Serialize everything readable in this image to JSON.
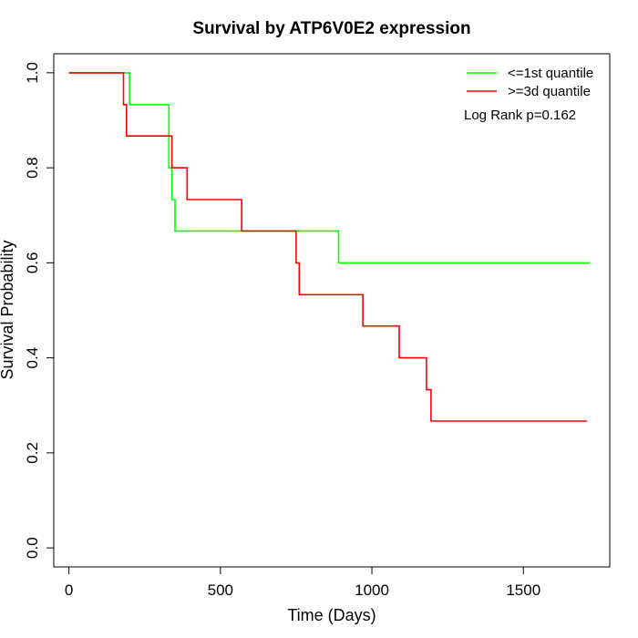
{
  "chart_data": {
    "type": "line",
    "title": "Survival by ATP6V0E2 expression",
    "xlabel": "Time (Days)",
    "ylabel": "Survival Probability",
    "xlim": [
      -50,
      1785
    ],
    "ylim": [
      -0.04,
      1.04
    ],
    "x_ticks": [
      0,
      500,
      1000,
      1500
    ],
    "y_ticks": [
      0.0,
      0.2,
      0.4,
      0.6,
      0.8,
      1.0
    ],
    "x_tick_labels": [
      "0",
      "500",
      "1000",
      "1500"
    ],
    "y_tick_labels": [
      "0.0",
      "0.2",
      "0.4",
      "0.6",
      "0.8",
      "1.0"
    ],
    "grid": false,
    "legend_position": "top-right",
    "annotation": "Log Rank p=0.162",
    "series": [
      {
        "name": "<=1st quantile",
        "color": "#00ff00",
        "x": [
          0,
          200,
          330,
          340,
          350,
          890,
          1720
        ],
        "y": [
          1.0,
          0.933,
          0.8,
          0.733,
          0.667,
          0.6,
          0.6
        ]
      },
      {
        "name": ">=3d quantile",
        "color": "#ff0000",
        "x": [
          0,
          180,
          190,
          340,
          390,
          570,
          750,
          760,
          970,
          1090,
          1180,
          1195,
          1710
        ],
        "y": [
          1.0,
          0.933,
          0.867,
          0.8,
          0.733,
          0.667,
          0.6,
          0.533,
          0.467,
          0.4,
          0.333,
          0.267,
          0.267
        ]
      }
    ]
  }
}
